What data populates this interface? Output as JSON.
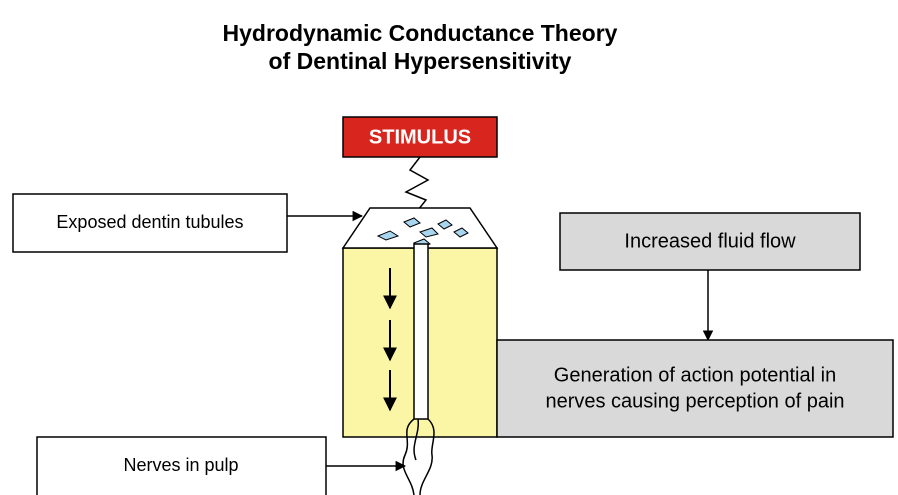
{
  "title": [
    "Hydrodynamic Conductance Theory",
    "of Dentinal Hypersensitivity"
  ],
  "stimulus": "STIMULUS",
  "labels": {
    "exposed": "Exposed dentin tubules",
    "nerves": "Nerves in pulp"
  },
  "flow": {
    "step1": "Increased fluid flow",
    "step2": [
      "Generation of action potential in",
      "nerves causing perception of pain"
    ]
  }
}
